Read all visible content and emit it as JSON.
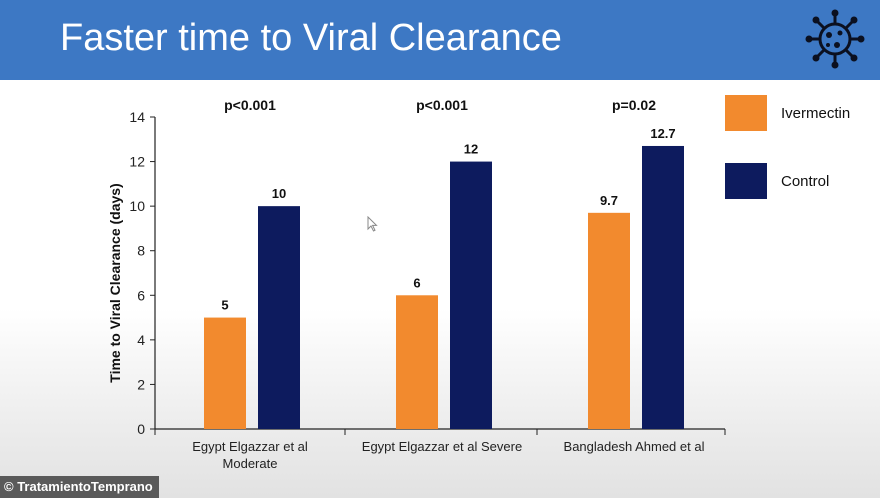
{
  "header": {
    "title": "Faster time to Viral Clearance",
    "icon": "virus-icon"
  },
  "credit": {
    "text": "© TratamientoTemprano"
  },
  "colors": {
    "banner": "#3d78c4",
    "ivermectin": "#f28a2e",
    "control": "#0d1b5e",
    "axis": "#222222"
  },
  "chart_data": {
    "type": "bar",
    "title": "",
    "xlabel": "",
    "ylabel": "Time to Viral Clearance (days)",
    "ylim": [
      0,
      14
    ],
    "yticks": [
      0,
      2,
      4,
      6,
      8,
      10,
      12,
      14
    ],
    "grid": false,
    "legend_position": "right",
    "categories": [
      [
        "Egypt Elgazzar et al",
        "Moderate"
      ],
      [
        "Egypt Elgazzar et al Severe"
      ],
      [
        "Bangladesh Ahmed et al"
      ]
    ],
    "p_values": [
      "p<0.001",
      "p<0.001",
      "p=0.02"
    ],
    "series": [
      {
        "name": "Ivermectin",
        "values": [
          5,
          6,
          9.7
        ],
        "labels": [
          "5",
          "6",
          "9.7"
        ]
      },
      {
        "name": "Control",
        "values": [
          10,
          12,
          12.7
        ],
        "labels": [
          "10",
          "12",
          "12.7"
        ]
      }
    ]
  }
}
